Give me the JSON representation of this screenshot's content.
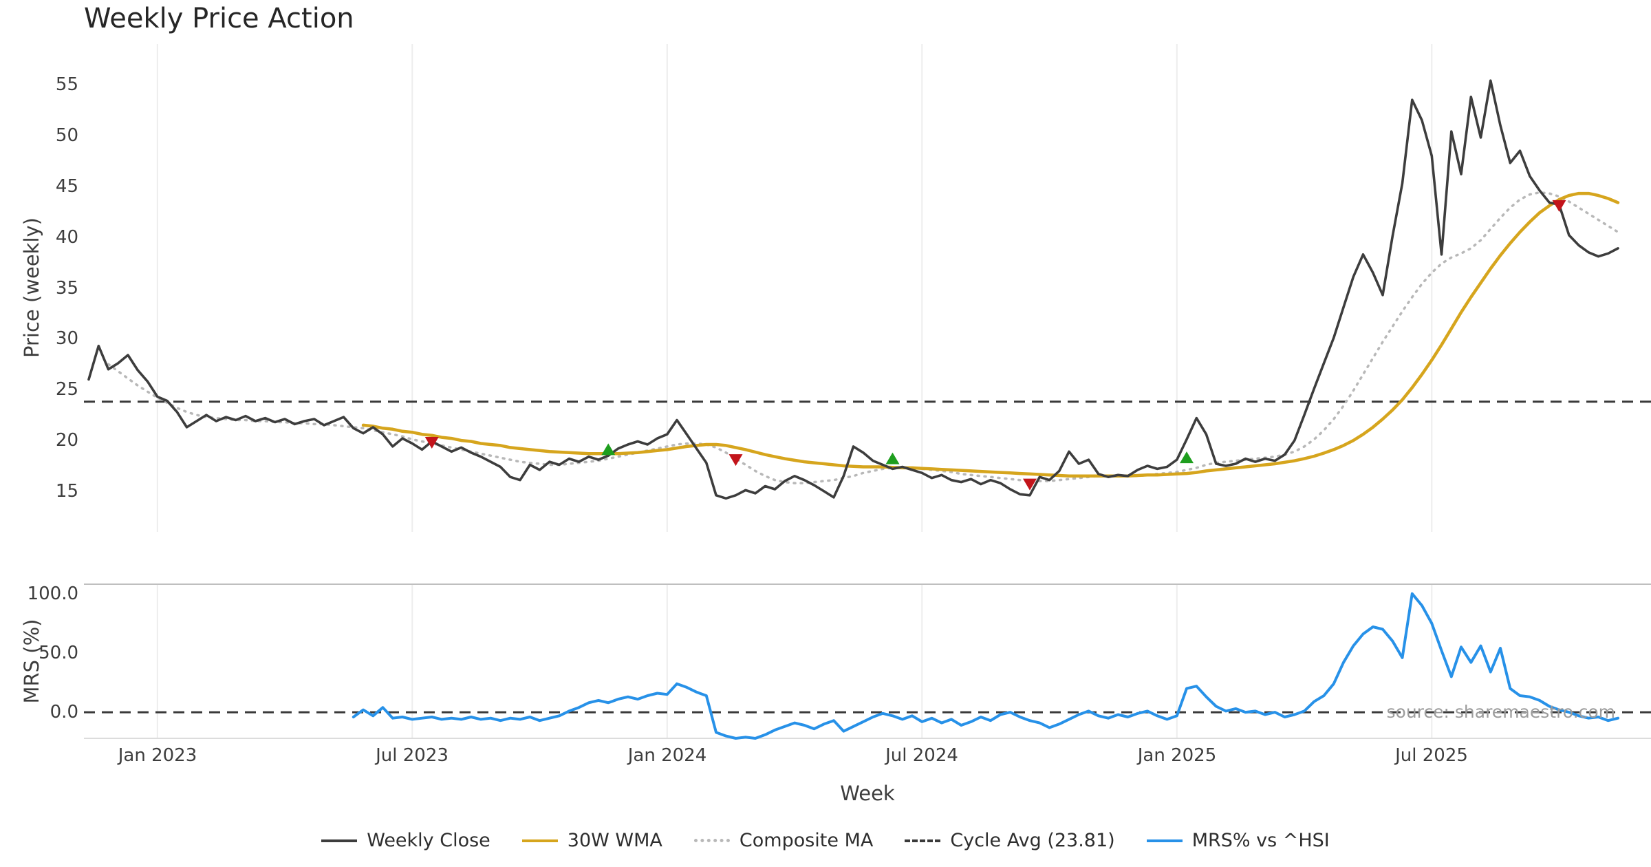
{
  "title": "Weekly Price Action",
  "xlabel": "Week",
  "watermark": "source: sharemaestro.com",
  "colors": {
    "close": "#3d3d3d",
    "wma": "#d6a51d",
    "composite": "#b8b8b8",
    "cycle": "#3a3a3a",
    "mrs": "#2791e8",
    "buy": "#1e9e1e",
    "sell": "#c3141b",
    "grid": "#ededed",
    "axis_text": "#3d3d3d",
    "title_text": "#262626",
    "watermark_text": "#9c9c9c"
  },
  "legend": [
    {
      "label": "Weekly Close",
      "swatch": "solid",
      "color": "close"
    },
    {
      "label": "30W WMA",
      "swatch": "solid",
      "color": "wma"
    },
    {
      "label": "Composite MA",
      "swatch": "dotted",
      "color": "composite"
    },
    {
      "label": "Cycle Avg (23.81)",
      "swatch": "dashed",
      "color": "cycle"
    },
    {
      "label": "MRS% vs ^HSI",
      "swatch": "solid",
      "color": "mrs"
    }
  ],
  "chart_data": [
    {
      "type": "line",
      "panel": "price",
      "title": "Weekly Price Action",
      "xlabel": "Week",
      "ylabel": "Price (weekly)",
      "ylim": [
        11,
        59
      ],
      "y_ticks": [
        15,
        20,
        25,
        30,
        35,
        40,
        45,
        50,
        55
      ],
      "grid": "vertical",
      "legend_position": "bottom",
      "cycle_avg": 23.81,
      "x_axis": {
        "tick_weeks": [
          7,
          33,
          59,
          85,
          111,
          137
        ],
        "tick_labels": [
          "Jan 2023",
          "Jul 2023",
          "Jan 2024",
          "Jul 2024",
          "Jan 2025",
          "Jul 2025"
        ]
      },
      "series": [
        {
          "name": "Weekly Close",
          "start_week": 0,
          "values": [
            26.0,
            29.3,
            27.0,
            27.6,
            28.4,
            26.9,
            25.8,
            24.3,
            23.9,
            22.8,
            21.3,
            21.9,
            22.5,
            21.9,
            22.3,
            22.0,
            22.4,
            21.9,
            22.2,
            21.8,
            22.1,
            21.6,
            21.9,
            22.1,
            21.5,
            21.9,
            22.3,
            21.2,
            20.7,
            21.3,
            20.6,
            19.4,
            20.2,
            19.7,
            19.1,
            19.9,
            19.4,
            18.9,
            19.3,
            18.8,
            18.4,
            17.9,
            17.4,
            16.4,
            16.1,
            17.6,
            17.1,
            17.9,
            17.6,
            18.2,
            17.9,
            18.4,
            18.1,
            18.5,
            19.2,
            19.6,
            19.9,
            19.6,
            20.2,
            20.6,
            22.0,
            20.6,
            19.2,
            17.8,
            14.6,
            14.3,
            14.6,
            15.1,
            14.8,
            15.5,
            15.2,
            16.0,
            16.5,
            16.1,
            15.6,
            15.0,
            14.4,
            16.5,
            19.4,
            18.8,
            18.0,
            17.6,
            17.2,
            17.4,
            17.1,
            16.8,
            16.3,
            16.6,
            16.1,
            15.9,
            16.2,
            15.7,
            16.1,
            15.8,
            15.2,
            14.7,
            14.6,
            16.4,
            16.1,
            17.0,
            18.9,
            17.7,
            18.1,
            16.7,
            16.4,
            16.6,
            16.5,
            17.1,
            17.5,
            17.2,
            17.4,
            18.1,
            20.1,
            22.2,
            20.6,
            17.7,
            17.5,
            17.7,
            18.2,
            17.9,
            18.2,
            18.0,
            18.6,
            20.0,
            22.5,
            25.1,
            27.6,
            30.1,
            33.1,
            36.1,
            38.3,
            36.5,
            34.3,
            40.1,
            45.3,
            53.5,
            51.5,
            48.0,
            38.3,
            50.4,
            46.2,
            53.8,
            49.8,
            55.4,
            51.0,
            47.3,
            48.5,
            46.0,
            44.6,
            43.4,
            43.2,
            40.2,
            39.2,
            38.5,
            38.1,
            38.4,
            38.9
          ]
        },
        {
          "name": "30W WMA",
          "start_week": 28,
          "values": [
            21.5,
            21.4,
            21.2,
            21.1,
            20.9,
            20.8,
            20.6,
            20.5,
            20.3,
            20.2,
            20.0,
            19.9,
            19.7,
            19.6,
            19.5,
            19.3,
            19.2,
            19.1,
            19.0,
            18.9,
            18.85,
            18.8,
            18.75,
            18.7,
            18.7,
            18.7,
            18.7,
            18.75,
            18.8,
            18.9,
            19.0,
            19.1,
            19.25,
            19.4,
            19.5,
            19.6,
            19.6,
            19.5,
            19.3,
            19.1,
            18.85,
            18.6,
            18.4,
            18.2,
            18.05,
            17.9,
            17.8,
            17.7,
            17.6,
            17.5,
            17.45,
            17.4,
            17.4,
            17.4,
            17.35,
            17.3,
            17.3,
            17.25,
            17.2,
            17.15,
            17.1,
            17.05,
            17.0,
            16.95,
            16.9,
            16.85,
            16.8,
            16.75,
            16.7,
            16.65,
            16.6,
            16.55,
            16.5,
            16.5,
            16.5,
            16.5,
            16.5,
            16.5,
            16.5,
            16.55,
            16.6,
            16.6,
            16.65,
            16.7,
            16.75,
            16.85,
            17.0,
            17.1,
            17.2,
            17.3,
            17.4,
            17.5,
            17.6,
            17.7,
            17.85,
            18.0,
            18.2,
            18.45,
            18.75,
            19.1,
            19.5,
            20.0,
            20.6,
            21.3,
            22.1,
            23.0,
            24.0,
            25.2,
            26.5,
            27.9,
            29.4,
            31.0,
            32.6,
            34.1,
            35.5,
            36.9,
            38.2,
            39.4,
            40.5,
            41.5,
            42.4,
            43.1,
            43.7,
            44.1,
            44.3,
            44.3,
            44.1,
            43.8,
            43.4
          ]
        },
        {
          "name": "Composite MA",
          "start_week": 2,
          "values": [
            27.5,
            26.8,
            26.1,
            25.4,
            24.8,
            24.2,
            23.7,
            23.2,
            22.8,
            22.5,
            22.3,
            22.2,
            22.1,
            22.0,
            22.0,
            21.9,
            21.9,
            21.8,
            21.8,
            21.7,
            21.7,
            21.6,
            21.6,
            21.5,
            21.4,
            21.3,
            21.2,
            21.0,
            20.8,
            20.6,
            20.4,
            20.1,
            19.9,
            19.7,
            19.5,
            19.3,
            19.1,
            18.9,
            18.7,
            18.5,
            18.3,
            18.1,
            17.9,
            17.8,
            17.7,
            17.6,
            17.6,
            17.7,
            17.8,
            17.9,
            18.0,
            18.2,
            18.4,
            18.6,
            18.8,
            19.0,
            19.2,
            19.4,
            19.6,
            19.7,
            19.7,
            19.6,
            19.3,
            18.8,
            18.2,
            17.6,
            17.0,
            16.5,
            16.1,
            15.9,
            15.8,
            15.8,
            15.9,
            16.0,
            16.1,
            16.3,
            16.5,
            16.8,
            17.0,
            17.2,
            17.3,
            17.3,
            17.3,
            17.2,
            17.1,
            17.0,
            16.9,
            16.7,
            16.6,
            16.5,
            16.4,
            16.3,
            16.2,
            16.1,
            16.0,
            16.0,
            16.0,
            16.1,
            16.2,
            16.3,
            16.4,
            16.5,
            16.5,
            16.5,
            16.5,
            16.5,
            16.6,
            16.7,
            16.8,
            16.9,
            17.1,
            17.3,
            17.6,
            17.8,
            17.9,
            18.0,
            18.1,
            18.2,
            18.3,
            18.4,
            18.6,
            18.9,
            19.4,
            20.1,
            21.0,
            22.1,
            23.4,
            24.9,
            26.5,
            28.1,
            29.7,
            31.2,
            32.7,
            34.1,
            35.4,
            36.5,
            37.4,
            38.0,
            38.4,
            38.9,
            39.7,
            40.8,
            41.9,
            42.9,
            43.7,
            44.2,
            44.4,
            44.3,
            44.0,
            43.5,
            42.9,
            42.3,
            41.7,
            41.1,
            40.5
          ]
        }
      ],
      "signals": {
        "sell_weeks": [
          [
            35,
            19.8
          ],
          [
            66,
            18.1
          ],
          [
            96,
            15.7
          ],
          [
            150,
            43.1
          ]
        ],
        "buy_weeks": [
          [
            53,
            19.1
          ],
          [
            82,
            18.2
          ],
          [
            112,
            18.3
          ]
        ]
      }
    },
    {
      "type": "line",
      "panel": "mrs",
      "ylabel": "MRS (%)",
      "ylim": [
        -22,
        108
      ],
      "y_ticks": [
        0,
        50,
        100
      ],
      "y_tick_labels": [
        "0.0",
        "50.0",
        "100.0"
      ],
      "zero_line": 0,
      "series": [
        {
          "name": "MRS% vs ^HSI",
          "start_week": 27,
          "values": [
            -4,
            2,
            -3,
            4,
            -5,
            -4,
            -6,
            -5,
            -4,
            -6,
            -5,
            -6,
            -4,
            -6,
            -5,
            -7,
            -5,
            -6,
            -4,
            -7,
            -5,
            -3,
            1,
            4,
            8,
            10,
            8,
            11,
            13,
            11,
            14,
            16,
            15,
            24,
            21,
            17,
            14,
            -17,
            -20,
            -22,
            -21,
            -22,
            -19,
            -15,
            -12,
            -9,
            -11,
            -14,
            -10,
            -7,
            -16,
            -12,
            -8,
            -4,
            -1,
            -3,
            -6,
            -3,
            -8,
            -5,
            -9,
            -6,
            -11,
            -8,
            -4,
            -7,
            -2,
            0,
            -4,
            -7,
            -9,
            -13,
            -10,
            -6,
            -2,
            1,
            -3,
            -5,
            -2,
            -4,
            -1,
            1,
            -3,
            -6,
            -3,
            20,
            22,
            13,
            5,
            1,
            3,
            0,
            1,
            -2,
            0,
            -4,
            -2,
            1,
            9,
            14,
            24,
            42,
            56,
            66,
            72,
            70,
            60,
            46,
            100,
            90,
            75,
            52,
            30,
            55,
            42,
            56,
            34,
            54,
            20,
            14,
            13,
            10,
            5,
            2,
            0,
            -3,
            -5,
            -4,
            -7,
            -5
          ]
        }
      ]
    }
  ]
}
